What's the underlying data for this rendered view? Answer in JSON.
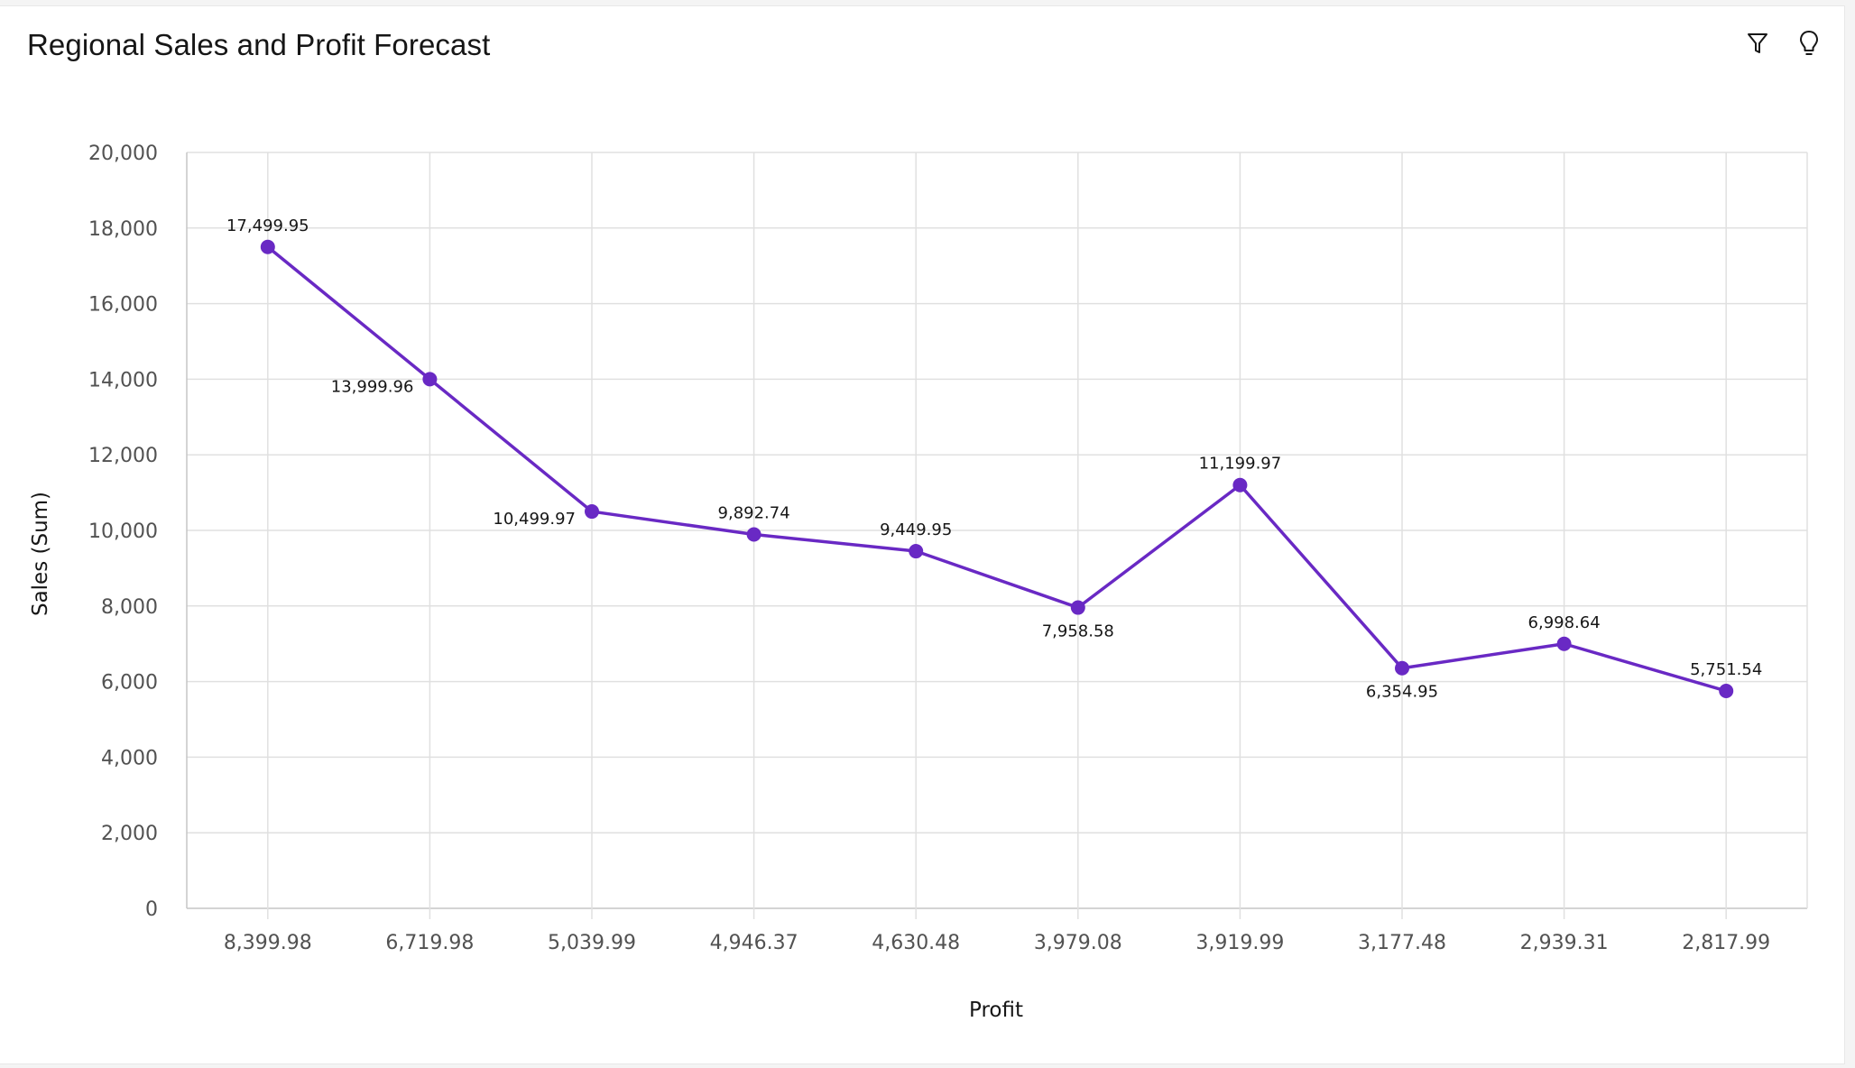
{
  "header": {
    "title": "Regional Sales and Profit Forecast"
  },
  "toolbar": {
    "filter_icon": "filter-icon",
    "insight_icon": "lightbulb-icon"
  },
  "colors": {
    "series": "#6929c4",
    "grid": "#e0e0e0",
    "axis": "#c6c6c6"
  },
  "chart_data": {
    "type": "line",
    "xlabel": "Profit",
    "ylabel": "Sales (Sum)",
    "categories": [
      "8,399.98",
      "6,719.98",
      "5,039.99",
      "4,946.37",
      "4,630.48",
      "3,979.08",
      "3,919.99",
      "3,177.48",
      "2,939.31",
      "2,817.99"
    ],
    "series": [
      {
        "values": [
          17499.95,
          13999.96,
          10499.97,
          9892.74,
          9449.95,
          7958.58,
          11199.97,
          6354.95,
          6998.64,
          5751.54
        ],
        "labels": [
          "17,499.95",
          "13,999.96",
          "10,499.97",
          "9,892.74",
          "9,449.95",
          "7,958.58",
          "11,199.97",
          "6,354.95",
          "6,998.64",
          "5,751.54"
        ]
      }
    ],
    "ylim": [
      0,
      20000
    ],
    "yticks": [
      "0",
      "2,000",
      "4,000",
      "6,000",
      "8,000",
      "10,000",
      "12,000",
      "14,000",
      "16,000",
      "18,000",
      "20,000"
    ],
    "grid": true,
    "legend": "none"
  }
}
